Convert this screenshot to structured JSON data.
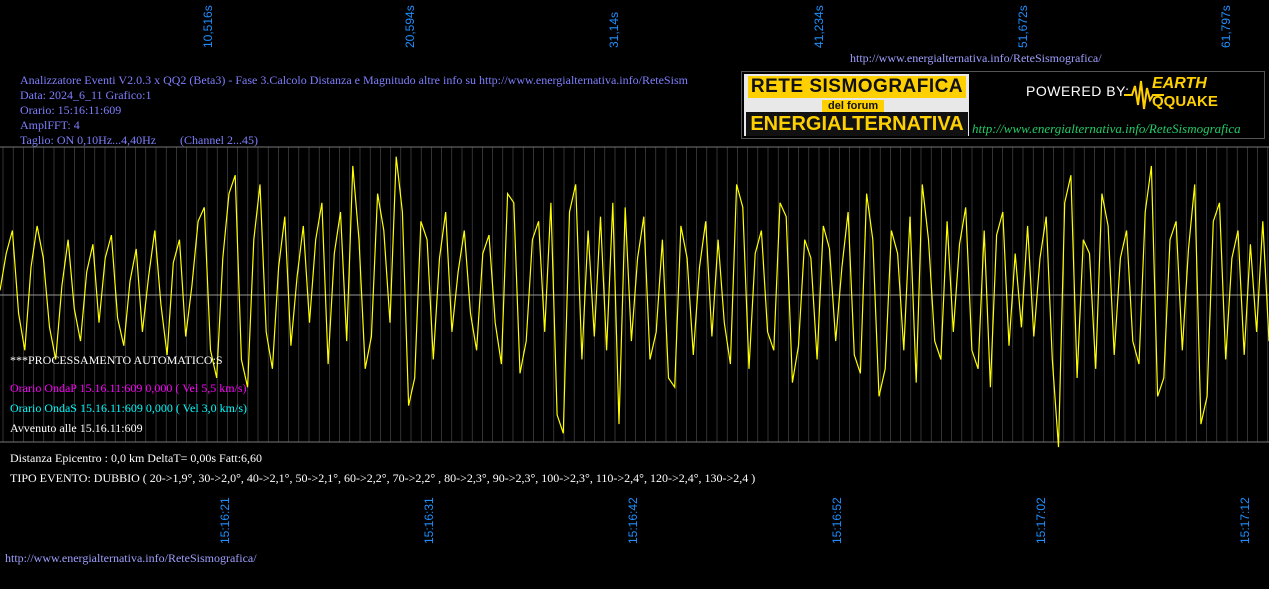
{
  "header": {
    "url_top": "http://www.energialternativa.info/ReteSismografica/",
    "title": "Analizzatore Eventi V2.0.3 x QQ2 (Beta3) - Fase 3.Calcolo Distanza e Magnitudo altre info su http://www.energialternativa.info/ReteSism",
    "data": "Data: 2024_6_11 Grafico:1",
    "orario": "Orario: 15:16:11:609",
    "amplfft": "AmplFFT: 4",
    "taglio": "Taglio: ON 0,10Hz...4,40Hz",
    "channel": "(Channel 2...45)"
  },
  "logo": {
    "line1": "RETE SISMOGRAFICA",
    "line2": "del forum",
    "line3": "ENERGIALTERNATIVA",
    "powered": "POWERED BY:",
    "brand1": "EARTH",
    "brand2": "QQUAKE",
    "url": "http://www.energialternativa.info/ReteSismografica"
  },
  "processing": {
    "heading": "***PROCESSAMENTO AUTOMATICO:S",
    "onda_p": "Orario OndaP 15.16.11:609  0,000 ( Vel 5,5 km/s)",
    "onda_s": "Orario OndaS 15.16.11:609  0,000 ( Vel 3,0 km/s)",
    "avvenuto": "Avvenuto alle 15.16.11:609"
  },
  "result": {
    "distanza": "Distanza Epicentro : 0,0 km DeltaT= 0,00s  Fatt:6,60",
    "tipo": "TIPO EVENTO: DUBBIO ( 20->1,9°, 30->2,0°, 40->2,1°, 50->2,1°, 60->2,2°, 70->2,2° , 80->2,3°, 90->2,3°, 100->2,3°, 110->2,4°, 120->2,4°, 130->2,4 )"
  },
  "footer_url": "http://www.energialternativa.info/ReteSismografica/",
  "colors": {
    "background": "#000000",
    "trace": "#ffff00",
    "axis_labels": "#1f8fff",
    "grid": "#555555",
    "info_text": "#7f7fff",
    "onda_p": "#ff00ff",
    "onda_s": "#00ffff"
  },
  "chart_data": {
    "type": "line",
    "series": [
      {
        "values": [
          5,
          45,
          70,
          -20,
          -60,
          30,
          75,
          40,
          -35,
          -70,
          10,
          60,
          -15,
          -50,
          25,
          55,
          -30,
          40,
          65,
          -25,
          -55,
          15,
          50,
          -40,
          20,
          70,
          -10,
          -65,
          35,
          60,
          -45,
          10,
          80,
          95,
          -60,
          -90,
          40,
          110,
          130,
          -70,
          -100,
          60,
          120,
          -40,
          -80,
          30,
          85,
          -55,
          20,
          75,
          -30,
          60,
          100,
          -75,
          45,
          90,
          -50,
          140,
          60,
          -80,
          -45,
          110,
          70,
          -30,
          150,
          90,
          -120,
          -90,
          80,
          60,
          -70,
          40,
          90,
          -40,
          25,
          70,
          -20,
          -60,
          45,
          65,
          -30,
          -75,
          110,
          100,
          -85,
          -50,
          60,
          80,
          -40,
          100,
          -130,
          -150,
          90,
          120,
          -70,
          70,
          -45,
          85,
          -60,
          100,
          -140,
          95,
          -50,
          40,
          85,
          -70,
          -40,
          60,
          -90,
          -100,
          75,
          40,
          -65,
          30,
          80,
          -45,
          60,
          -30,
          -75,
          120,
          95,
          -80,
          45,
          70,
          -40,
          -60,
          100,
          85,
          -95,
          -55,
          60,
          40,
          -70,
          75,
          50,
          -50,
          30,
          90,
          -65,
          -85,
          110,
          60,
          -110,
          -80,
          70,
          45,
          -60,
          85,
          -95,
          120,
          60,
          -50,
          -70,
          80,
          -40,
          55,
          95,
          -60,
          -80,
          70,
          -100,
          65,
          90,
          -55,
          45,
          -35,
          75,
          -45,
          40,
          85,
          -70,
          -165,
          100,
          130,
          -90,
          60,
          45,
          -80,
          110,
          75,
          -65,
          40,
          70,
          -50,
          -75,
          90,
          140,
          -110,
          -90,
          60,
          80,
          -60,
          50,
          120,
          -140,
          -110,
          80,
          100,
          -70,
          40,
          70,
          -65,
          55,
          -40,
          80,
          -50
        ],
        "note": ""
      }
    ],
    "x_tick_labels_top": [
      "10,516s",
      "20,594s",
      "31,14s",
      "41,234s",
      "51,672s",
      "61,797s"
    ],
    "x_tick_labels_bottom": [
      "15:16:21",
      "15:16:31",
      "15:16:42",
      "15:16:52",
      "15:17:02",
      "15:17:12"
    ],
    "ylim": [
      -160,
      160
    ],
    "grid": true
  }
}
